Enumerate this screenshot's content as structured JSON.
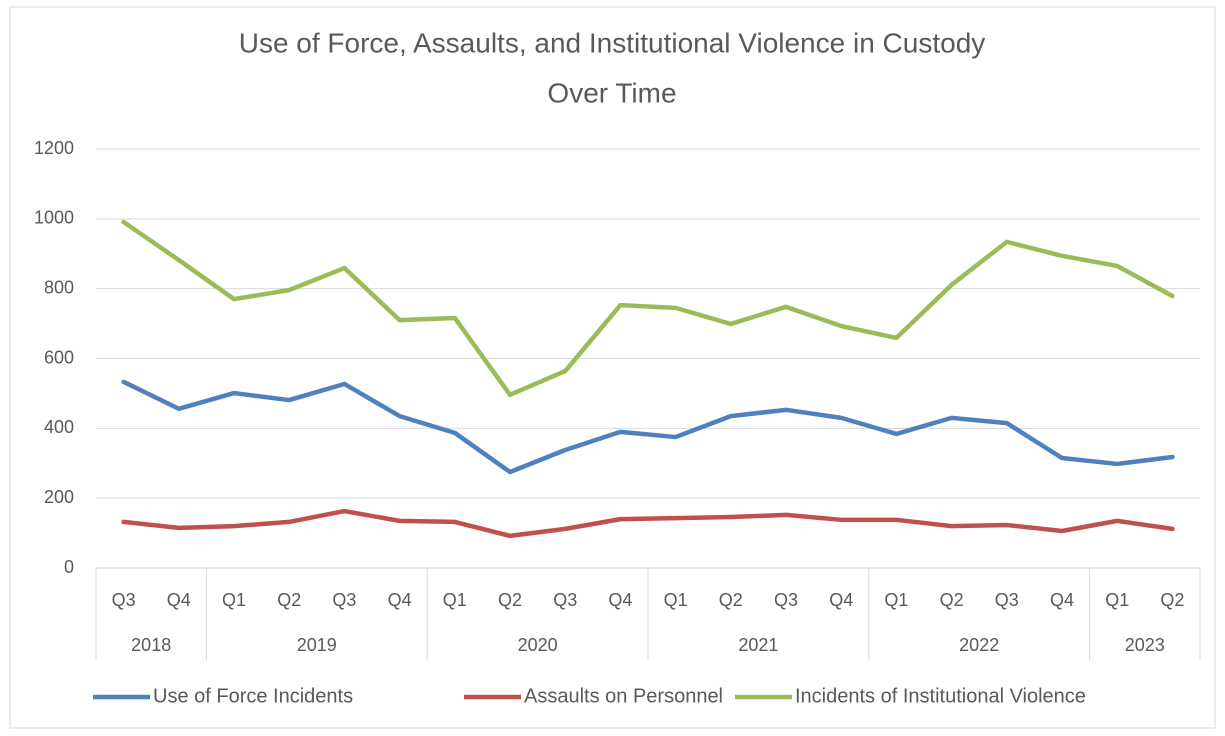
{
  "chart_data": {
    "type": "line",
    "title": [
      "Use of Force, Assaults, and Institutional Violence in Custody",
      "Over Time"
    ],
    "categories": [
      "Q3",
      "Q4",
      "Q1",
      "Q2",
      "Q3",
      "Q4",
      "Q1",
      "Q2",
      "Q3",
      "Q4",
      "Q1",
      "Q2",
      "Q3",
      "Q4",
      "Q1",
      "Q2",
      "Q3",
      "Q4",
      "Q1",
      "Q2"
    ],
    "year_groups": [
      {
        "label": "2018",
        "count": 2
      },
      {
        "label": "2019",
        "count": 4
      },
      {
        "label": "2020",
        "count": 4
      },
      {
        "label": "2021",
        "count": 4
      },
      {
        "label": "2022",
        "count": 4
      },
      {
        "label": "2023",
        "count": 2
      }
    ],
    "series": [
      {
        "name": "Use of Force Incidents",
        "color": "#4f81bd",
        "values": [
          533,
          456,
          501,
          481,
          527,
          435,
          387,
          275,
          338,
          390,
          375,
          435,
          453,
          430,
          384,
          430,
          415,
          315,
          298,
          318
        ]
      },
      {
        "name": "Assaults on Personnel",
        "color": "#c0504d",
        "values": [
          132,
          115,
          120,
          132,
          163,
          135,
          132,
          92,
          112,
          140,
          143,
          146,
          152,
          138,
          138,
          120,
          123,
          106,
          135,
          112
        ]
      },
      {
        "name": "Incidents of Institutional Violence",
        "color": "#9bbb59",
        "values": [
          991,
          882,
          770,
          796,
          859,
          710,
          716,
          496,
          564,
          753,
          745,
          699,
          748,
          693,
          659,
          811,
          934,
          894,
          865,
          779
        ]
      }
    ],
    "ylim": [
      0,
      1200
    ],
    "yticks": [
      0,
      200,
      400,
      600,
      800,
      1000,
      1200
    ],
    "grid": true,
    "legend": "bottom"
  }
}
